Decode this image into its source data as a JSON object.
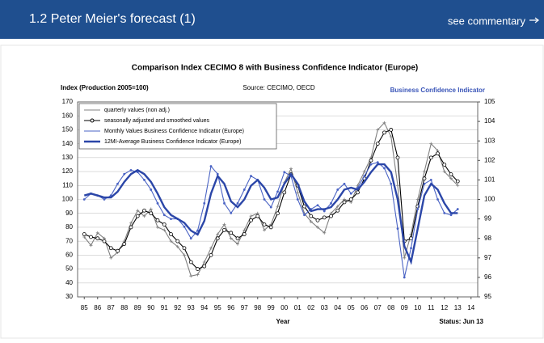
{
  "header": {
    "title": "1.2 Peter Meier's forecast (1)",
    "link": "see commentary"
  },
  "chart_data": {
    "type": "line",
    "title": "Comparison Index CECIMO 8 with Business Confidence Indicator (Europe)",
    "y_label": "Index (Production 2005=100)",
    "source": "Source: CECIMO, OECD",
    "y2_label": "Business Confidence Indicator",
    "x_label": "Year",
    "status": "Status: Jun 13",
    "x": [
      1985,
      1985.5,
      1986,
      1986.5,
      1987,
      1987.5,
      1988,
      1988.5,
      1989,
      1989.5,
      1990,
      1990.5,
      1991,
      1991.5,
      1992,
      1992.5,
      1993,
      1993.5,
      1994,
      1994.5,
      1995,
      1995.5,
      1996,
      1996.5,
      1997,
      1997.5,
      1998,
      1998.5,
      1999,
      1999.5,
      2000,
      2000.5,
      2001,
      2001.5,
      2002,
      2002.5,
      2003,
      2003.5,
      2004,
      2004.5,
      2005,
      2005.5,
      2006,
      2006.5,
      2007,
      2007.5,
      2008,
      2008.5,
      2009,
      2009.5,
      2010,
      2010.5,
      2011,
      2011.5,
      2012,
      2012.5,
      2013
    ],
    "series": [
      {
        "name": "quarterly values (non adj.)",
        "color": "#808080",
        "marker": "plus",
        "values": [
          73,
          67,
          76,
          72,
          58,
          62,
          70,
          83,
          92,
          88,
          93,
          80,
          78,
          70,
          66,
          60,
          45,
          46,
          55,
          65,
          75,
          82,
          72,
          68,
          78,
          88,
          90,
          78,
          82,
          95,
          112,
          122,
          105,
          90,
          84,
          80,
          76,
          90,
          95,
          100,
          98,
          110,
          120,
          130,
          150,
          155,
          145,
          110,
          58,
          75,
          100,
          120,
          140,
          135,
          120,
          115,
          110
        ]
      },
      {
        "name": "seasonally adjusted and smoothed values",
        "color": "#000000",
        "marker": "circle",
        "values": [
          75,
          73,
          72,
          70,
          65,
          63,
          68,
          80,
          88,
          92,
          90,
          85,
          82,
          75,
          70,
          65,
          55,
          50,
          52,
          60,
          72,
          78,
          76,
          72,
          75,
          85,
          88,
          82,
          80,
          90,
          105,
          118,
          110,
          95,
          88,
          85,
          87,
          88,
          92,
          98,
          100,
          105,
          115,
          128,
          140,
          148,
          150,
          130,
          70,
          72,
          95,
          115,
          130,
          133,
          125,
          118,
          113
        ]
      },
      {
        "name": "Monthly Values Business Confidence Indicator (Europe)",
        "color": "#4a63c4",
        "marker": "dot",
        "axis": "y2",
        "values": [
          100,
          100.3,
          100.2,
          100,
          100.2,
          100.8,
          101.3,
          101.5,
          101.4,
          101,
          100.5,
          99.8,
          99.2,
          99,
          99,
          98.6,
          98,
          98.4,
          99.8,
          101.7,
          101.3,
          99.8,
          99.3,
          99.8,
          100.5,
          101.2,
          101,
          100,
          99.6,
          100.4,
          101.4,
          101.2,
          100,
          99.2,
          99.5,
          99.7,
          99.4,
          99.8,
          100.5,
          100.8,
          100.3,
          100.6,
          101.2,
          101.8,
          101.9,
          101.6,
          100.8,
          98.5,
          96,
          97.5,
          99.5,
          100.8,
          101,
          100,
          99.3,
          99.2,
          99.5
        ]
      },
      {
        "name": "12MI-Average Business Confidence Indicator (Europe)",
        "color": "#2b46a8",
        "marker": "none",
        "axis": "y2",
        "values": [
          100.2,
          100.3,
          100.2,
          100.1,
          100.1,
          100.4,
          100.9,
          101.3,
          101.5,
          101.3,
          100.9,
          100.3,
          99.6,
          99.2,
          99,
          98.8,
          98.4,
          98.2,
          98.9,
          100.3,
          101.2,
          100.8,
          99.9,
          99.6,
          100,
          100.7,
          101,
          100.6,
          100,
          100.1,
          100.8,
          101.3,
          100.8,
          99.9,
          99.4,
          99.5,
          99.5,
          99.6,
          100,
          100.5,
          100.6,
          100.5,
          100.9,
          101.4,
          101.8,
          101.8,
          101.4,
          100,
          97.6,
          96.8,
          98.5,
          100.2,
          100.8,
          100.5,
          99.8,
          99.3,
          99.3
        ]
      }
    ],
    "xlim": [
      1984.5,
      2014.5
    ],
    "xticks": [
      {
        "value": 1985,
        "label": "85"
      },
      {
        "value": 1986,
        "label": "86"
      },
      {
        "value": 1987,
        "label": "87"
      },
      {
        "value": 1988,
        "label": "88"
      },
      {
        "value": 1989,
        "label": "89"
      },
      {
        "value": 1990,
        "label": "90"
      },
      {
        "value": 1991,
        "label": "91"
      },
      {
        "value": 1992,
        "label": "92"
      },
      {
        "value": 1993,
        "label": "93"
      },
      {
        "value": 1994,
        "label": "94"
      },
      {
        "value": 1995,
        "label": "95"
      },
      {
        "value": 1996,
        "label": "96"
      },
      {
        "value": 1997,
        "label": "97"
      },
      {
        "value": 1998,
        "label": "98"
      },
      {
        "value": 1999,
        "label": "99"
      },
      {
        "value": 2000,
        "label": "00"
      },
      {
        "value": 2001,
        "label": "01"
      },
      {
        "value": 2002,
        "label": "02"
      },
      {
        "value": 2003,
        "label": "03"
      },
      {
        "value": 2004,
        "label": "04"
      },
      {
        "value": 2005,
        "label": "05"
      },
      {
        "value": 2006,
        "label": "06"
      },
      {
        "value": 2007,
        "label": "07"
      },
      {
        "value": 2008,
        "label": "08"
      },
      {
        "value": 2009,
        "label": "09"
      },
      {
        "value": 2010,
        "label": "10"
      },
      {
        "value": 2011,
        "label": "11"
      },
      {
        "value": 2012,
        "label": "12"
      },
      {
        "value": 2013,
        "label": "13"
      },
      {
        "value": 2014,
        "label": "14"
      }
    ],
    "ylim": [
      30,
      170
    ],
    "yticks": [
      30,
      40,
      50,
      60,
      70,
      80,
      90,
      100,
      110,
      120,
      130,
      140,
      150,
      160,
      170
    ],
    "y2lim": [
      95,
      105
    ],
    "y2ticks": [
      95,
      96,
      97,
      98,
      99,
      100,
      101,
      102,
      103,
      104,
      105
    ],
    "grid": true
  }
}
